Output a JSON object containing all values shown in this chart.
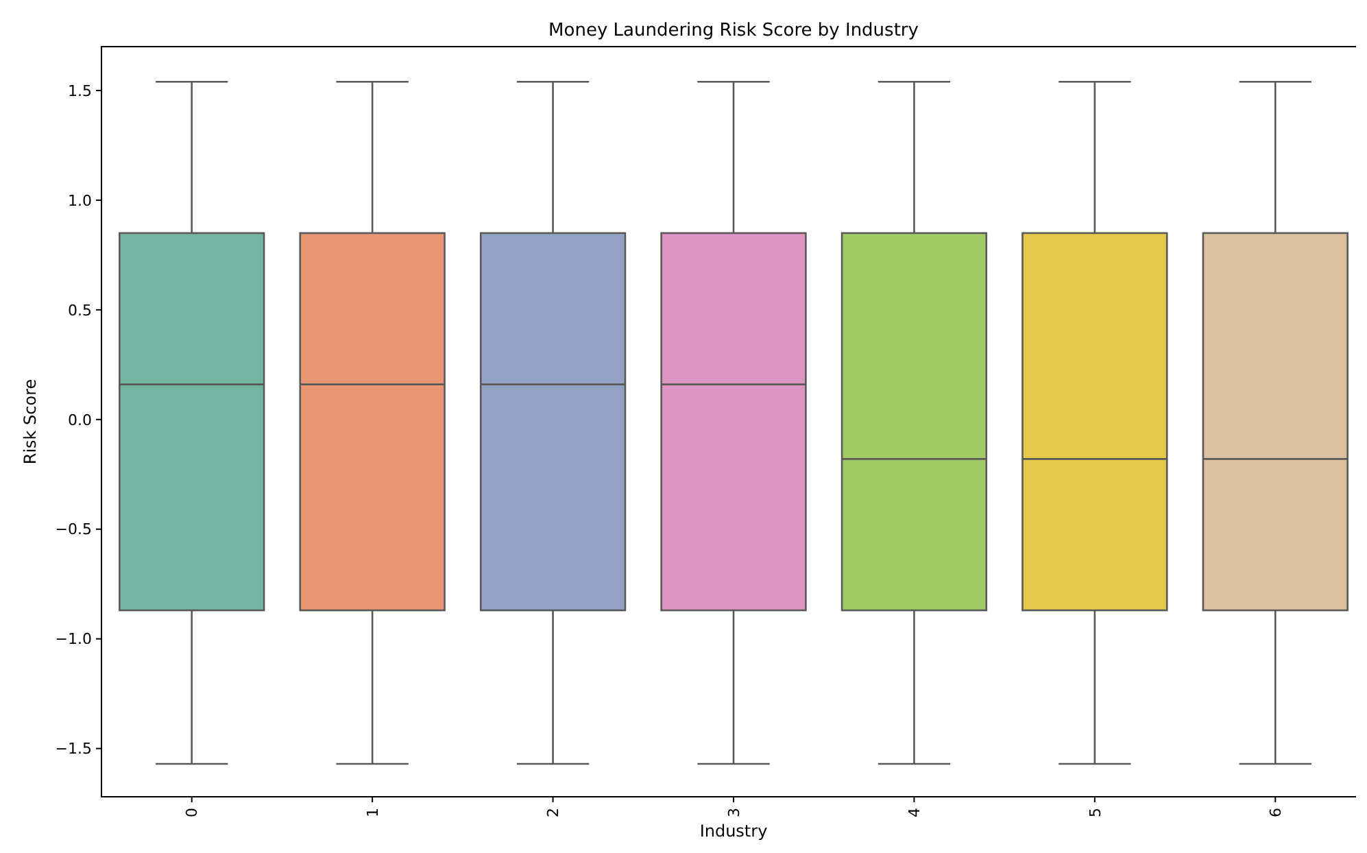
{
  "chart_data": {
    "type": "box",
    "title": "Money Laundering Risk Score by Industry",
    "xlabel": "Industry",
    "ylabel": "Risk Score",
    "categories": [
      "0",
      "1",
      "2",
      "3",
      "4",
      "5",
      "6"
    ],
    "colors": [
      "#73b5a1",
      "#e99675",
      "#94a3c3",
      "#dc95c0",
      "#a3c966",
      "#e4c94a",
      "#dbc29e"
    ],
    "boxes": [
      {
        "low": -1.57,
        "q1": -0.87,
        "median": 0.16,
        "q3": 0.85,
        "high": 1.54
      },
      {
        "low": -1.57,
        "q1": -0.87,
        "median": 0.16,
        "q3": 0.85,
        "high": 1.54
      },
      {
        "low": -1.57,
        "q1": -0.87,
        "median": 0.16,
        "q3": 0.85,
        "high": 1.54
      },
      {
        "low": -1.57,
        "q1": -0.87,
        "median": 0.16,
        "q3": 0.85,
        "high": 1.54
      },
      {
        "low": -1.57,
        "q1": -0.87,
        "median": -0.18,
        "q3": 0.85,
        "high": 1.54
      },
      {
        "low": -1.57,
        "q1": -0.87,
        "median": -0.18,
        "q3": 0.85,
        "high": 1.54
      },
      {
        "low": -1.57,
        "q1": -0.87,
        "median": -0.18,
        "q3": 0.85,
        "high": 1.54
      }
    ],
    "ylim": [
      -1.72,
      1.7
    ],
    "yticks": [
      {
        "value": -1.5,
        "label": "−1.5"
      },
      {
        "value": -1,
        "label": "−1.0"
      },
      {
        "value": -0.5,
        "label": "−0.5"
      },
      {
        "value": 0,
        "label": "0.0"
      },
      {
        "value": 0.5,
        "label": "0.5"
      },
      {
        "value": 1,
        "label": "1.0"
      },
      {
        "value": 1.5,
        "label": "1.5"
      }
    ]
  }
}
